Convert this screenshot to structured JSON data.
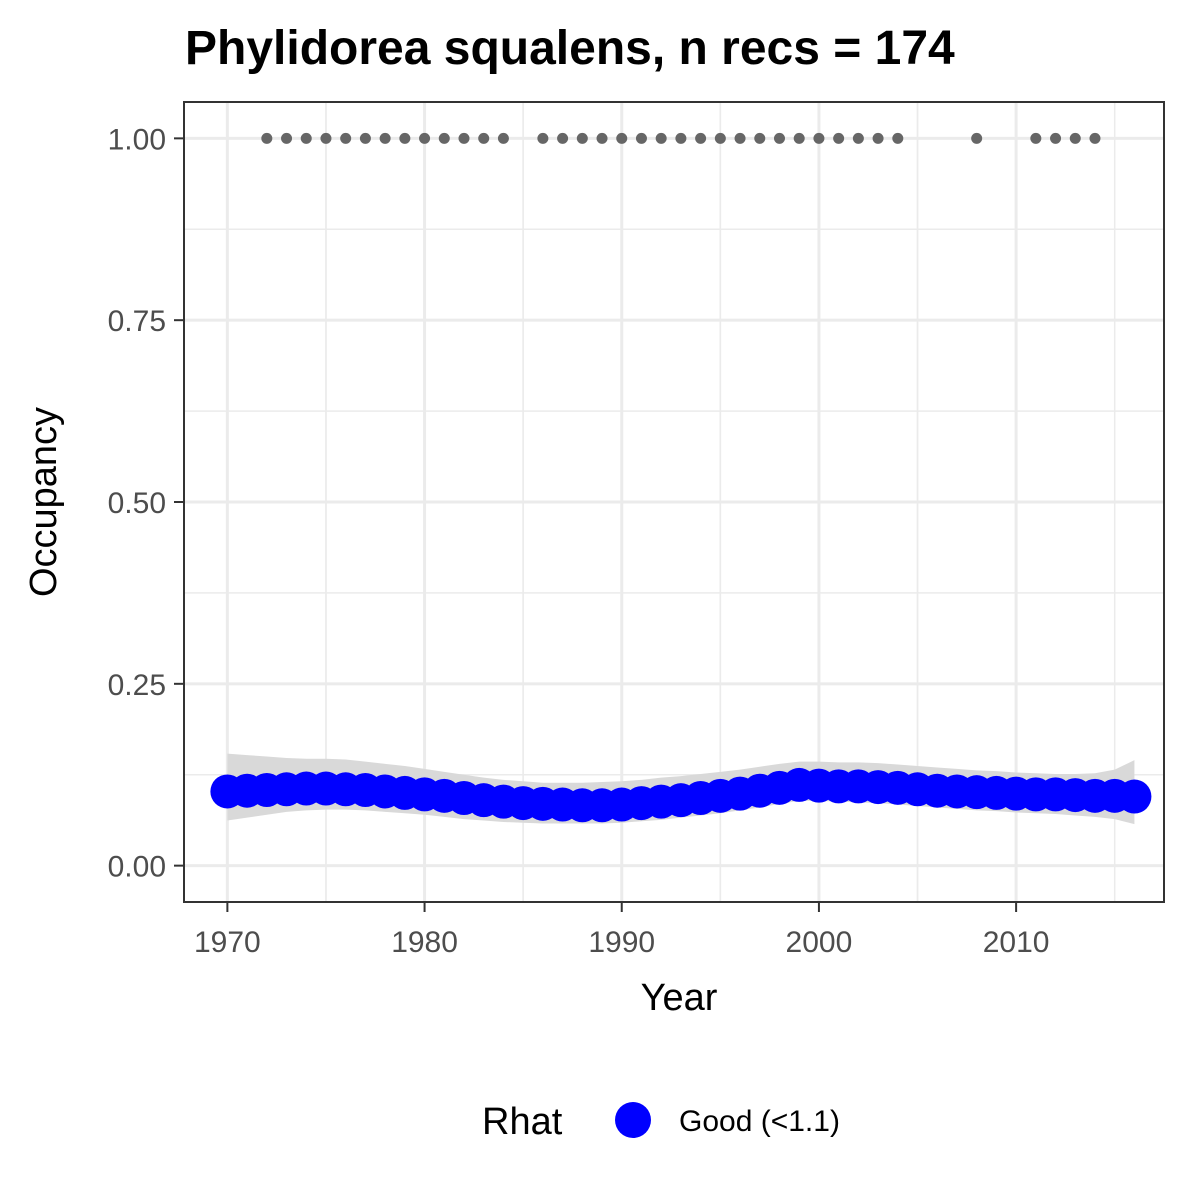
{
  "chart_data": {
    "type": "line",
    "title": "Phylidorea squalens, n recs = 174",
    "xlabel": "Year",
    "ylabel": "Occupancy",
    "xlim": [
      1967.8,
      2017.5
    ],
    "ylim": [
      -0.05,
      1.05
    ],
    "x_ticks": [
      1970,
      1980,
      1990,
      2000,
      2010
    ],
    "x_tick_labels": [
      "1970",
      "1980",
      "1990",
      "2000",
      "2010"
    ],
    "y_ticks": [
      0,
      0.25,
      0.5,
      0.75,
      1.0
    ],
    "y_tick_labels": [
      "0.00",
      "0.25",
      "0.50",
      "0.75",
      "1.00"
    ],
    "grid": true,
    "legend": {
      "title": "Rhat",
      "position": "bottom",
      "entries": [
        {
          "label": "Good (<1.1)",
          "color": "#0000ff"
        }
      ]
    },
    "colors": {
      "estimate": "#0000ff",
      "ribbon": "#d9d9d9",
      "records": "#666666",
      "grid": "#ebebeb",
      "panel_border": "#333333"
    },
    "record_years": [
      1972,
      1973,
      1974,
      1975,
      1976,
      1977,
      1978,
      1979,
      1980,
      1981,
      1982,
      1983,
      1984,
      1986,
      1987,
      1988,
      1989,
      1990,
      1991,
      1992,
      1993,
      1994,
      1995,
      1996,
      1997,
      1998,
      1999,
      2000,
      2001,
      2002,
      2003,
      2004,
      2008,
      2011,
      2012,
      2013,
      2014
    ],
    "series": [
      {
        "name": "Good (<1.1)",
        "x": [
          1970,
          1971,
          1972,
          1973,
          1974,
          1975,
          1976,
          1977,
          1978,
          1979,
          1980,
          1981,
          1982,
          1983,
          1984,
          1985,
          1986,
          1987,
          1988,
          1989,
          1990,
          1991,
          1992,
          1993,
          1994,
          1995,
          1996,
          1997,
          1998,
          1999,
          2000,
          2001,
          2002,
          2003,
          2004,
          2005,
          2006,
          2007,
          2008,
          2009,
          2010,
          2011,
          2012,
          2013,
          2014,
          2015,
          2016
        ],
        "y": [
          0.102,
          0.103,
          0.104,
          0.105,
          0.106,
          0.106,
          0.105,
          0.104,
          0.102,
          0.1,
          0.098,
          0.096,
          0.093,
          0.09,
          0.088,
          0.086,
          0.085,
          0.084,
          0.083,
          0.083,
          0.084,
          0.086,
          0.088,
          0.09,
          0.093,
          0.096,
          0.099,
          0.103,
          0.107,
          0.111,
          0.11,
          0.109,
          0.109,
          0.108,
          0.107,
          0.105,
          0.103,
          0.102,
          0.101,
          0.1,
          0.099,
          0.098,
          0.098,
          0.097,
          0.096,
          0.096,
          0.095
        ],
        "lower": [
          0.062,
          0.066,
          0.07,
          0.074,
          0.076,
          0.077,
          0.077,
          0.076,
          0.074,
          0.072,
          0.07,
          0.067,
          0.064,
          0.062,
          0.06,
          0.059,
          0.058,
          0.058,
          0.058,
          0.058,
          0.059,
          0.061,
          0.063,
          0.066,
          0.069,
          0.072,
          0.076,
          0.08,
          0.085,
          0.089,
          0.089,
          0.088,
          0.087,
          0.086,
          0.084,
          0.082,
          0.08,
          0.078,
          0.076,
          0.075,
          0.073,
          0.072,
          0.071,
          0.069,
          0.067,
          0.064,
          0.057
        ],
        "upper": [
          0.154,
          0.152,
          0.15,
          0.148,
          0.147,
          0.147,
          0.146,
          0.143,
          0.14,
          0.137,
          0.133,
          0.129,
          0.125,
          0.121,
          0.118,
          0.116,
          0.114,
          0.114,
          0.114,
          0.115,
          0.116,
          0.118,
          0.121,
          0.123,
          0.126,
          0.129,
          0.132,
          0.136,
          0.14,
          0.143,
          0.143,
          0.142,
          0.142,
          0.141,
          0.139,
          0.137,
          0.135,
          0.133,
          0.131,
          0.13,
          0.128,
          0.127,
          0.126,
          0.126,
          0.127,
          0.132,
          0.145
        ]
      }
    ]
  }
}
